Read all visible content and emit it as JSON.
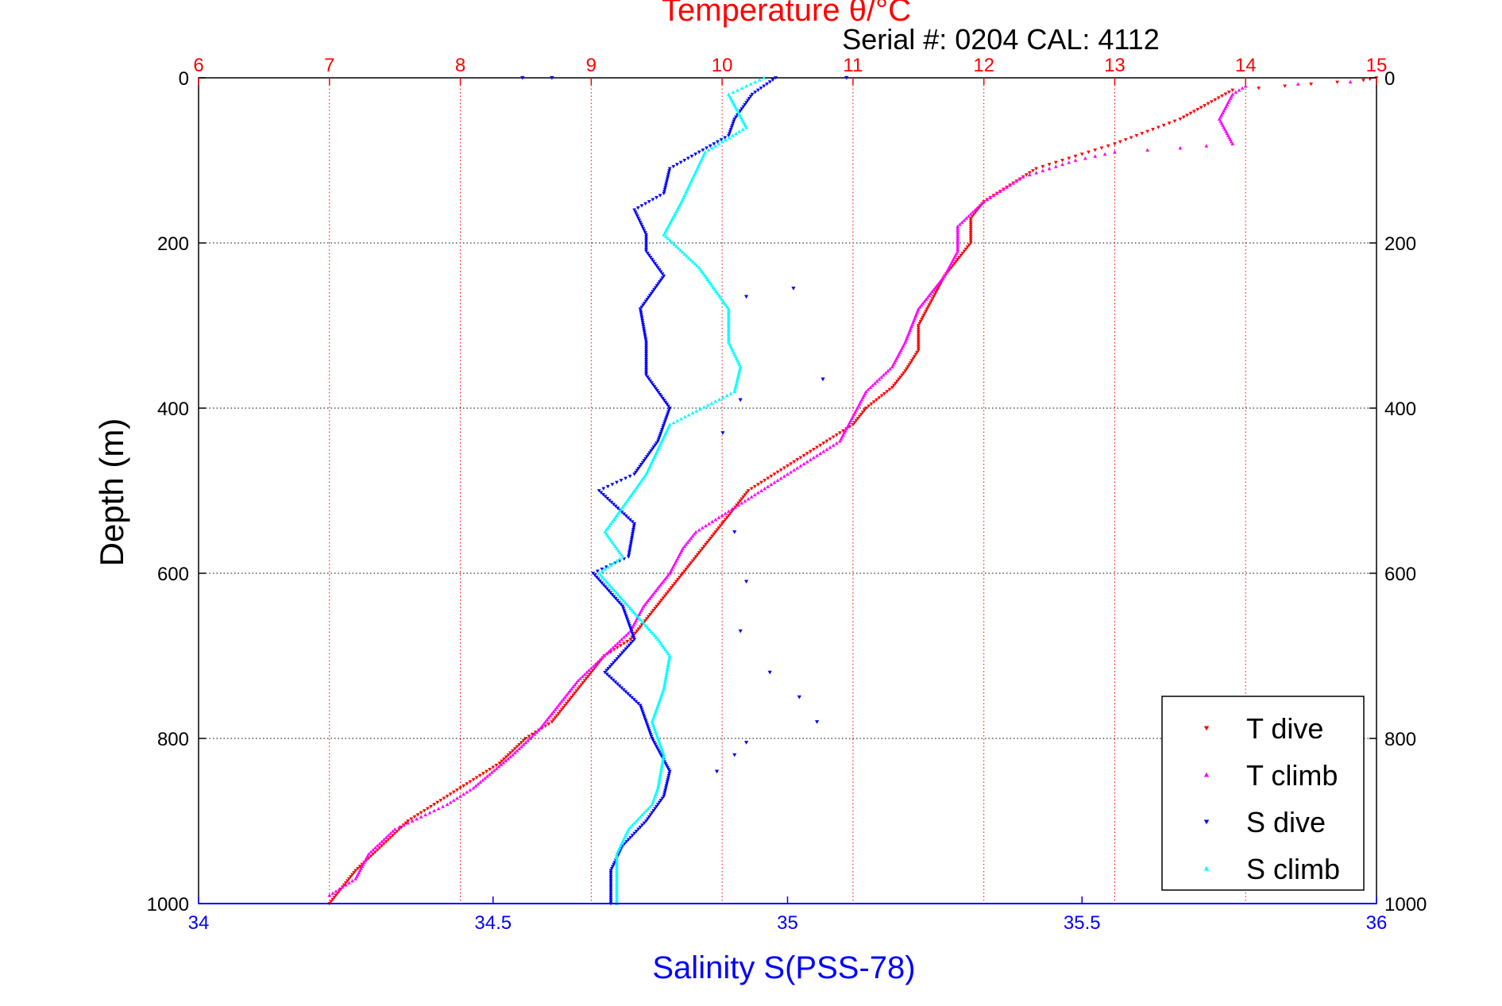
{
  "chart_data": {
    "type": "scatter",
    "title": "Temperature θ/°C",
    "subtitle": "Serial #: 0204  CAL: 4112",
    "ylabel": "Depth (m)",
    "xlabel_bottom": "Salinity S(PSS-78)",
    "ylim": [
      0,
      1000
    ],
    "y_reversed": true,
    "xlim_top": [
      6,
      15
    ],
    "xlim_bottom": [
      34,
      36
    ],
    "yticks": [
      0,
      200,
      400,
      600,
      800,
      1000
    ],
    "xticks_top": [
      6,
      7,
      8,
      9,
      10,
      11,
      12,
      13,
      14,
      15
    ],
    "xticks_bottom": [
      34,
      34.5,
      35,
      35.5,
      36
    ],
    "grid": true,
    "legend_position": "bottom-right",
    "colors": {
      "title": "#ff0000",
      "salinity_axis": "#0000ff",
      "t_dive": "#ff0000",
      "t_climb": "#ff00ff",
      "s_dive": "#0000ff",
      "s_climb": "#00ffff"
    },
    "series": [
      {
        "name": "T dive",
        "axis": "top",
        "color": "#ff0000",
        "marker": "triangle-down",
        "points": [
          [
            15.0,
            0
          ],
          [
            14.9,
            3
          ],
          [
            14.3,
            10
          ],
          [
            13.9,
            15
          ],
          [
            13.5,
            50
          ],
          [
            13.0,
            80
          ],
          [
            12.8,
            90
          ],
          [
            12.4,
            110
          ],
          [
            12.2,
            130
          ],
          [
            12.0,
            150
          ],
          [
            11.9,
            170
          ],
          [
            11.9,
            200
          ],
          [
            11.8,
            220
          ],
          [
            11.7,
            240
          ],
          [
            11.6,
            270
          ],
          [
            11.5,
            300
          ],
          [
            11.5,
            330
          ],
          [
            11.4,
            355
          ],
          [
            11.3,
            375
          ],
          [
            11.1,
            400
          ],
          [
            11.0,
            420
          ],
          [
            10.8,
            440
          ],
          [
            10.6,
            460
          ],
          [
            10.4,
            480
          ],
          [
            10.2,
            500
          ],
          [
            10.1,
            520
          ],
          [
            10.0,
            540
          ],
          [
            9.9,
            560
          ],
          [
            9.8,
            580
          ],
          [
            9.7,
            600
          ],
          [
            9.6,
            620
          ],
          [
            9.5,
            640
          ],
          [
            9.4,
            660
          ],
          [
            9.3,
            680
          ],
          [
            9.1,
            700
          ],
          [
            9.0,
            720
          ],
          [
            8.9,
            740
          ],
          [
            8.8,
            760
          ],
          [
            8.7,
            780
          ],
          [
            8.5,
            800
          ],
          [
            8.3,
            830
          ],
          [
            8.0,
            860
          ],
          [
            7.8,
            880
          ],
          [
            7.6,
            900
          ],
          [
            7.4,
            930
          ],
          [
            7.2,
            960
          ],
          [
            7.1,
            980
          ],
          [
            7.0,
            1000
          ]
        ]
      },
      {
        "name": "T climb",
        "axis": "top",
        "color": "#ff00ff",
        "marker": "triangle-up",
        "points": [
          [
            14.8,
            5
          ],
          [
            14.0,
            10
          ],
          [
            13.9,
            20
          ],
          [
            13.8,
            50
          ],
          [
            13.9,
            80
          ],
          [
            13.5,
            85
          ],
          [
            13.0,
            90
          ],
          [
            12.7,
            100
          ],
          [
            12.3,
            120
          ],
          [
            12.0,
            150
          ],
          [
            11.8,
            180
          ],
          [
            11.8,
            210
          ],
          [
            11.7,
            240
          ],
          [
            11.5,
            280
          ],
          [
            11.4,
            320
          ],
          [
            11.3,
            350
          ],
          [
            11.1,
            380
          ],
          [
            11.0,
            410
          ],
          [
            10.9,
            440
          ],
          [
            10.7,
            460
          ],
          [
            10.4,
            490
          ],
          [
            10.2,
            510
          ],
          [
            10.0,
            530
          ],
          [
            9.8,
            550
          ],
          [
            9.7,
            570
          ],
          [
            9.6,
            600
          ],
          [
            9.4,
            640
          ],
          [
            9.3,
            670
          ],
          [
            9.1,
            700
          ],
          [
            8.9,
            730
          ],
          [
            8.8,
            750
          ],
          [
            8.7,
            770
          ],
          [
            8.6,
            790
          ],
          [
            8.4,
            820
          ],
          [
            8.1,
            860
          ],
          [
            7.9,
            880
          ],
          [
            7.5,
            910
          ],
          [
            7.3,
            940
          ],
          [
            7.2,
            970
          ],
          [
            7.0,
            990
          ]
        ]
      },
      {
        "name": "S dive",
        "axis": "bottom",
        "color": "#0000ff",
        "marker": "triangle-down",
        "points": [
          [
            34.98,
            0
          ],
          [
            34.94,
            20
          ],
          [
            34.91,
            50
          ],
          [
            34.9,
            70
          ],
          [
            34.85,
            90
          ],
          [
            34.8,
            110
          ],
          [
            34.79,
            140
          ],
          [
            34.74,
            160
          ],
          [
            34.76,
            190
          ],
          [
            34.76,
            210
          ],
          [
            34.79,
            240
          ],
          [
            34.75,
            280
          ],
          [
            34.76,
            320
          ],
          [
            34.76,
            360
          ],
          [
            34.8,
            400
          ],
          [
            34.78,
            440
          ],
          [
            34.74,
            480
          ],
          [
            34.68,
            500
          ],
          [
            34.74,
            540
          ],
          [
            34.73,
            580
          ],
          [
            34.67,
            600
          ],
          [
            34.72,
            640
          ],
          [
            34.74,
            680
          ],
          [
            34.69,
            720
          ],
          [
            34.75,
            760
          ],
          [
            34.77,
            800
          ],
          [
            34.8,
            840
          ],
          [
            34.79,
            870
          ],
          [
            34.76,
            900
          ],
          [
            34.72,
            930
          ],
          [
            34.7,
            960
          ],
          [
            34.7,
            1000
          ]
        ]
      },
      {
        "name": "S climb",
        "axis": "bottom",
        "color": "#00ffff",
        "marker": "triangle-up",
        "points": [
          [
            34.96,
            0
          ],
          [
            34.9,
            20
          ],
          [
            34.93,
            60
          ],
          [
            34.86,
            90
          ],
          [
            34.84,
            120
          ],
          [
            34.82,
            150
          ],
          [
            34.79,
            190
          ],
          [
            34.85,
            230
          ],
          [
            34.9,
            280
          ],
          [
            34.9,
            320
          ],
          [
            34.92,
            350
          ],
          [
            34.91,
            380
          ],
          [
            34.8,
            420
          ],
          [
            34.78,
            450
          ],
          [
            34.76,
            480
          ],
          [
            34.72,
            520
          ],
          [
            34.69,
            550
          ],
          [
            34.72,
            580
          ],
          [
            34.68,
            600
          ],
          [
            34.73,
            640
          ],
          [
            34.78,
            680
          ],
          [
            34.8,
            700
          ],
          [
            34.79,
            740
          ],
          [
            34.77,
            780
          ],
          [
            34.79,
            820
          ],
          [
            34.78,
            860
          ],
          [
            34.77,
            880
          ],
          [
            34.73,
            910
          ],
          [
            34.71,
            940
          ],
          [
            34.71,
            1000
          ]
        ]
      }
    ],
    "stray_points": [
      {
        "series": "S dive",
        "x": 34.55,
        "y": 0
      },
      {
        "series": "S dive",
        "x": 34.6,
        "y": 0
      },
      {
        "series": "S dive",
        "x": 35.1,
        "y": 0
      },
      {
        "series": "S dive",
        "x": 35.01,
        "y": 255
      },
      {
        "series": "S dive",
        "x": 34.93,
        "y": 265
      },
      {
        "series": "S dive",
        "x": 35.06,
        "y": 365
      },
      {
        "series": "S dive",
        "x": 34.92,
        "y": 390
      },
      {
        "series": "S dive",
        "x": 34.89,
        "y": 430
      },
      {
        "series": "S dive",
        "x": 34.91,
        "y": 550
      },
      {
        "series": "S dive",
        "x": 34.93,
        "y": 610
      },
      {
        "series": "S dive",
        "x": 34.92,
        "y": 670
      },
      {
        "series": "S dive",
        "x": 34.97,
        "y": 720
      },
      {
        "series": "S dive",
        "x": 35.02,
        "y": 750
      },
      {
        "series": "S dive",
        "x": 35.05,
        "y": 780
      },
      {
        "series": "S dive",
        "x": 34.93,
        "y": 805
      },
      {
        "series": "S dive",
        "x": 34.91,
        "y": 820
      },
      {
        "series": "S dive",
        "x": 34.88,
        "y": 840
      }
    ],
    "legend": [
      {
        "label": "T dive",
        "color": "#ff0000",
        "marker": "triangle-down"
      },
      {
        "label": "T climb",
        "color": "#ff00ff",
        "marker": "triangle-up"
      },
      {
        "label": "S dive",
        "color": "#0000ff",
        "marker": "triangle-down"
      },
      {
        "label": "S climb",
        "color": "#00ffff",
        "marker": "triangle-up"
      }
    ]
  }
}
